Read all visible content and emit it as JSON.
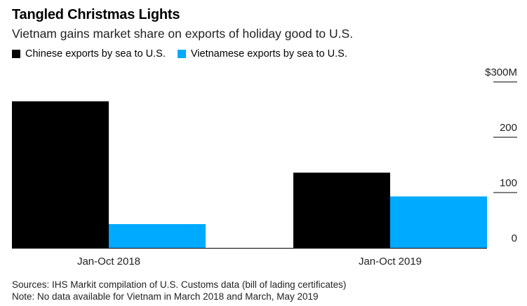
{
  "title": "Tangled Christmas Lights",
  "subtitle": "Vietnam gains market share on exports of holiday good to U.S.",
  "legend": [
    {
      "label": "Chinese exports by sea to U.S.",
      "color": "#000000"
    },
    {
      "label": "Vietnamese exports by sea to U.S.",
      "color": "#00aaff"
    }
  ],
  "chart_data": {
    "type": "bar",
    "categories": [
      "Jan-Oct 2018",
      "Jan-Oct 2019"
    ],
    "series": [
      {
        "name": "Chinese exports by sea to U.S.",
        "values": [
          265,
          136
        ],
        "color": "#000000"
      },
      {
        "name": "Vietnamese exports by sea to U.S.",
        "values": [
          43,
          93
        ],
        "color": "#00aaff"
      }
    ],
    "ylim": [
      0,
      300
    ],
    "yticks": [
      {
        "value": 300,
        "label": "$300M"
      },
      {
        "value": 200,
        "label": "200"
      },
      {
        "value": 100,
        "label": "100"
      },
      {
        "value": 0,
        "label": "0"
      }
    ],
    "grid": false,
    "legend_position": "top-left"
  },
  "footer": {
    "sources": "Sources: IHS Markit compilation of U.S. Customs data (bill of lading certificates)",
    "note": "Note: No data available for Vietnam in March 2018 and March, May 2019"
  }
}
